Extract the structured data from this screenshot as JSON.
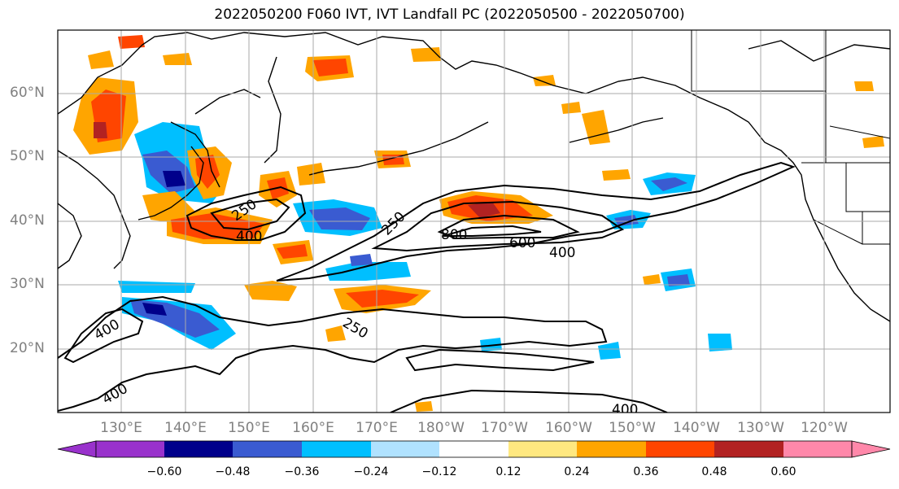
{
  "title": "2022050200 F060 IVT, IVT Landfall PC (2022050500 - 2022050700)",
  "map": {
    "lat_labels": [
      "60°N",
      "50°N",
      "40°N",
      "30°N",
      "20°N"
    ],
    "lon_labels": [
      "130°E",
      "140°E",
      "150°E",
      "160°E",
      "170°E",
      "180°W",
      "170°W",
      "160°W",
      "150°W",
      "140°W",
      "130°W",
      "120°W"
    ],
    "ivt_contour_labels": [
      "250",
      "400",
      "250",
      "800",
      "600",
      "400",
      "400",
      "250",
      "400",
      "400"
    ]
  },
  "colorbar": {
    "tick_labels": [
      "−0.60",
      "−0.48",
      "−0.36",
      "−0.24",
      "−0.12",
      "0.12",
      "0.24",
      "0.36",
      "0.48",
      "0.60"
    ],
    "colors": [
      "#9932CC",
      "#00008B",
      "#3A5BD1",
      "#00BFFF",
      "#B0E2FF",
      "#FFFFFF",
      "#FFE880",
      "#FFA500",
      "#FF4500",
      "#B22222",
      "#FF88AA"
    ]
  }
}
